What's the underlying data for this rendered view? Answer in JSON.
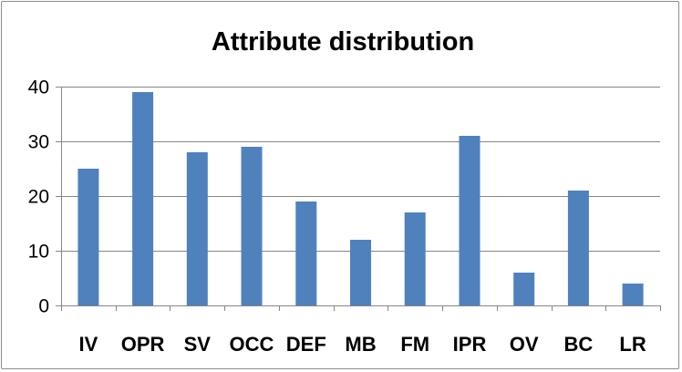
{
  "chart_data": {
    "type": "bar",
    "title": "Attribute distribution",
    "xlabel": "",
    "ylabel": "",
    "categories": [
      "IV",
      "OPR",
      "SV",
      "OCC",
      "DEF",
      "MB",
      "FM",
      "IPR",
      "OV",
      "BC",
      "LR"
    ],
    "values": [
      25,
      39,
      28,
      29,
      19,
      12,
      17,
      31,
      6,
      21,
      4
    ],
    "ylim": [
      0,
      40
    ],
    "yticks": [
      0,
      10,
      20,
      30,
      40
    ],
    "grid": true,
    "legend": "none",
    "bar_color": "#4f81bd"
  }
}
